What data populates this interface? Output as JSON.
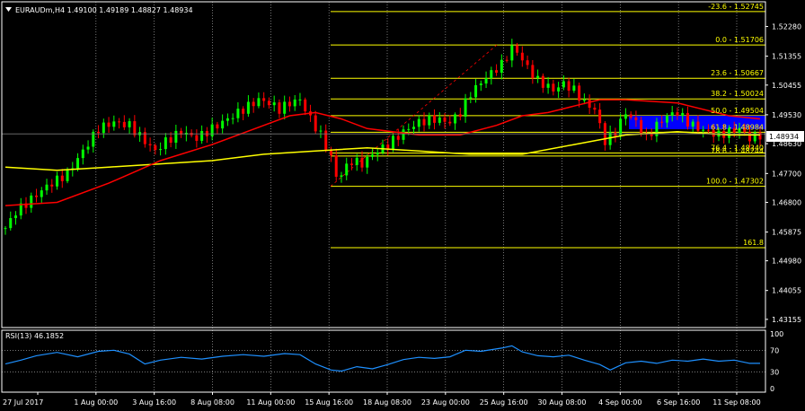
{
  "window": {
    "symbol_header": "EURAUDm,H4  1.49100 1.49189 1.48827 1.48934",
    "rsi_header": "RSI(13) 46.1852",
    "current_price": "1.48934"
  },
  "colors": {
    "background": "#000000",
    "bull_candle": "#00ff00",
    "bear_candle": "#ff0000",
    "ma_fast": "#ff0000",
    "ma_slow": "#ffff00",
    "fibo": "#ffff00",
    "rectangle": "#0000ff",
    "rsi_line": "#1e90ff",
    "grid": "#c0c0c0"
  },
  "price_axis_labels": [
    "1.52280",
    "1.51355",
    "1.50455",
    "1.49530",
    "1.48630",
    "1.47700",
    "1.46800",
    "1.45875",
    "1.44980",
    "1.44055",
    "1.43155"
  ],
  "rsi_axis_labels": [
    "100",
    "70",
    "30",
    "0"
  ],
  "time_axis_labels": [
    "27 Jul 2017",
    "1 Aug 00:00",
    "3 Aug 16:00",
    "8 Aug 08:00",
    "11 Aug 00:00",
    "15 Aug 16:00",
    "18 Aug 08:00",
    "23 Aug 00:00",
    "25 Aug 16:00",
    "30 Aug 08:00",
    "4 Sep 00:00",
    "6 Sep 16:00",
    "11 Sep 08:00"
  ],
  "fibo_levels": [
    "-23.6 - 1.52745",
    "0.0 - 1.51706",
    "23.6 - 1.50667",
    "38.2 - 1.50024",
    "50.0 - 1.49504",
    "61.8 - 1.48984",
    "76.4 - 1.48340",
    "78.6 - 1.48244",
    "100.0 - 1.47302",
    "161.8"
  ],
  "chart_data": {
    "type": "candlestick",
    "symbol": "EURAUDm",
    "timeframe": "H4",
    "ohlc_current": {
      "open": 1.491,
      "high": 1.49189,
      "low": 1.48827,
      "close": 1.48934
    },
    "price_ylim": [
      1.429,
      1.5305
    ],
    "rsi": {
      "period": 13,
      "value": 46.1852,
      "levels": [
        70,
        30
      ],
      "ylim": [
        0,
        100
      ]
    },
    "close_path": [
      [
        0,
        1.46
      ],
      [
        2,
        1.465
      ],
      [
        5,
        1.469
      ],
      [
        8,
        1.473
      ],
      [
        12,
        1.477
      ],
      [
        15,
        1.484
      ],
      [
        18,
        1.491
      ],
      [
        21,
        1.493
      ],
      [
        24,
        1.492
      ],
      [
        27,
        1.487
      ],
      [
        29,
        1.484
      ],
      [
        31,
        1.487
      ],
      [
        34,
        1.49
      ],
      [
        37,
        1.488
      ],
      [
        40,
        1.491
      ],
      [
        43,
        1.494
      ],
      [
        46,
        1.497
      ],
      [
        49,
        1.5
      ],
      [
        51,
        1.499
      ],
      [
        53,
        1.497
      ],
      [
        55,
        1.499
      ],
      [
        57,
        1.5
      ],
      [
        59,
        1.494
      ],
      [
        61,
        1.489
      ],
      [
        63,
        1.482
      ],
      [
        64,
        1.476
      ],
      [
        65,
        1.477
      ],
      [
        67,
        1.481
      ],
      [
        69,
        1.48
      ],
      [
        71,
        1.483
      ],
      [
        74,
        1.486
      ],
      [
        77,
        1.49
      ],
      [
        80,
        1.493
      ],
      [
        83,
        1.494
      ],
      [
        86,
        1.493
      ],
      [
        88,
        1.496
      ],
      [
        90,
        1.502
      ],
      [
        93,
        1.507
      ],
      [
        96,
        1.511
      ],
      [
        98,
        1.516
      ],
      [
        99,
        1.515
      ],
      [
        101,
        1.51
      ],
      [
        103,
        1.506
      ],
      [
        106,
        1.503
      ],
      [
        108,
        1.505
      ],
      [
        110,
        1.503
      ],
      [
        112,
        1.499
      ],
      [
        114,
        1.497
      ],
      [
        116,
        1.487
      ],
      [
        118,
        1.49
      ],
      [
        120,
        1.496
      ],
      [
        122,
        1.493
      ],
      [
        124,
        1.488
      ],
      [
        126,
        1.492
      ],
      [
        128,
        1.495
      ],
      [
        130,
        1.496
      ],
      [
        132,
        1.493
      ],
      [
        134,
        1.491
      ],
      [
        136,
        1.49
      ],
      [
        138,
        1.489
      ],
      [
        140,
        1.49
      ],
      [
        142,
        1.491
      ],
      [
        144,
        1.488
      ],
      [
        146,
        1.489
      ]
    ],
    "ma_fast_path": [
      [
        0,
        1.467
      ],
      [
        10,
        1.468
      ],
      [
        20,
        1.474
      ],
      [
        30,
        1.481
      ],
      [
        40,
        1.486
      ],
      [
        50,
        1.492
      ],
      [
        55,
        1.495
      ],
      [
        60,
        1.496
      ],
      [
        65,
        1.494
      ],
      [
        70,
        1.491
      ],
      [
        80,
        1.489
      ],
      [
        88,
        1.489
      ],
      [
        95,
        1.492
      ],
      [
        100,
        1.495
      ],
      [
        105,
        1.496
      ],
      [
        110,
        1.498
      ],
      [
        115,
        1.5
      ],
      [
        120,
        1.5
      ],
      [
        130,
        1.499
      ],
      [
        140,
        1.495
      ],
      [
        146,
        1.494
      ]
    ],
    "ma_slow_path": [
      [
        0,
        1.479
      ],
      [
        10,
        1.478
      ],
      [
        20,
        1.479
      ],
      [
        30,
        1.48
      ],
      [
        40,
        1.481
      ],
      [
        50,
        1.483
      ],
      [
        60,
        1.484
      ],
      [
        70,
        1.485
      ],
      [
        80,
        1.484
      ],
      [
        90,
        1.483
      ],
      [
        100,
        1.483
      ],
      [
        110,
        1.486
      ],
      [
        120,
        1.489
      ],
      [
        130,
        1.49
      ],
      [
        140,
        1.489
      ],
      [
        146,
        1.489
      ]
    ],
    "rsi_path": [
      [
        0,
        45
      ],
      [
        3,
        52
      ],
      [
        6,
        60
      ],
      [
        10,
        66
      ],
      [
        14,
        58
      ],
      [
        18,
        68
      ],
      [
        21,
        70
      ],
      [
        24,
        63
      ],
      [
        27,
        45
      ],
      [
        30,
        52
      ],
      [
        34,
        57
      ],
      [
        38,
        54
      ],
      [
        42,
        59
      ],
      [
        46,
        62
      ],
      [
        50,
        59
      ],
      [
        54,
        64
      ],
      [
        57,
        62
      ],
      [
        60,
        45
      ],
      [
        63,
        34
      ],
      [
        65,
        32
      ],
      [
        68,
        40
      ],
      [
        71,
        36
      ],
      [
        74,
        44
      ],
      [
        77,
        53
      ],
      [
        80,
        57
      ],
      [
        83,
        55
      ],
      [
        86,
        58
      ],
      [
        89,
        70
      ],
      [
        92,
        68
      ],
      [
        96,
        74
      ],
      [
        98,
        78
      ],
      [
        100,
        67
      ],
      [
        103,
        60
      ],
      [
        106,
        58
      ],
      [
        109,
        61
      ],
      [
        112,
        52
      ],
      [
        115,
        44
      ],
      [
        117,
        34
      ],
      [
        120,
        47
      ],
      [
        123,
        50
      ],
      [
        126,
        46
      ],
      [
        129,
        52
      ],
      [
        132,
        50
      ],
      [
        135,
        54
      ],
      [
        138,
        50
      ],
      [
        141,
        52
      ],
      [
        144,
        46
      ],
      [
        146,
        46
      ]
    ],
    "fibonacci": [
      {
        "level": -23.6,
        "price": 1.52745
      },
      {
        "level": 0.0,
        "price": 1.51706
      },
      {
        "level": 23.6,
        "price": 1.50667
      },
      {
        "level": 38.2,
        "price": 1.50024
      },
      {
        "level": 50.0,
        "price": 1.49504
      },
      {
        "level": 61.8,
        "price": 1.48984
      },
      {
        "level": 76.4,
        "price": 1.4834
      },
      {
        "level": 78.6,
        "price": 1.48244
      },
      {
        "level": 100.0,
        "price": 1.47302
      },
      {
        "level": 161.8,
        "price": 1.4539
      }
    ],
    "rectangle": {
      "price_top": 1.495,
      "price_bottom": 1.4908
    }
  }
}
